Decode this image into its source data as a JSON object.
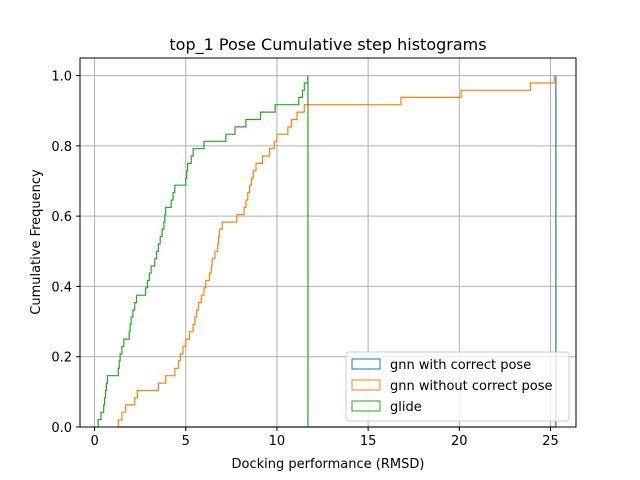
{
  "chart_data": {
    "type": "line",
    "subtype": "cumulative step histogram",
    "title": "top_1 Pose Cumulative step histograms",
    "xlabel": "Docking performance (RMSD)",
    "ylabel": "Cumulative Frequency",
    "xlim": [
      -0.8,
      26.4
    ],
    "ylim": [
      0,
      1.05
    ],
    "xticks": [
      0,
      5,
      10,
      15,
      20,
      25
    ],
    "yticks": [
      0.0,
      0.2,
      0.4,
      0.6,
      0.8,
      1.0
    ],
    "xtick_labels": [
      "0",
      "5",
      "10",
      "15",
      "20",
      "25"
    ],
    "ytick_labels": [
      "0.0",
      "0.2",
      "0.4",
      "0.6",
      "0.8",
      "1.0"
    ],
    "grid": true,
    "legend_position": "lower right",
    "series": [
      {
        "name": "gnn with correct pose",
        "color": "#1f77b4",
        "points": [
          [
            1.3,
            0.0
          ],
          [
            25.3,
            0.0
          ],
          [
            25.3,
            1.0
          ]
        ]
      },
      {
        "name": "gnn without correct pose",
        "color": "#ff7f0e",
        "points": [
          [
            1.3,
            0.0
          ],
          [
            1.3,
            0.02
          ],
          [
            1.5,
            0.02
          ],
          [
            1.5,
            0.042
          ],
          [
            1.7,
            0.042
          ],
          [
            1.7,
            0.063
          ],
          [
            2.2,
            0.063
          ],
          [
            2.2,
            0.083
          ],
          [
            2.35,
            0.083
          ],
          [
            2.35,
            0.104
          ],
          [
            3.5,
            0.104
          ],
          [
            3.5,
            0.125
          ],
          [
            3.9,
            0.125
          ],
          [
            3.9,
            0.146
          ],
          [
            4.4,
            0.146
          ],
          [
            4.4,
            0.167
          ],
          [
            4.6,
            0.167
          ],
          [
            4.6,
            0.188
          ],
          [
            4.7,
            0.188
          ],
          [
            4.7,
            0.208
          ],
          [
            4.85,
            0.208
          ],
          [
            4.85,
            0.229
          ],
          [
            5.0,
            0.229
          ],
          [
            5.0,
            0.25
          ],
          [
            5.2,
            0.25
          ],
          [
            5.2,
            0.271
          ],
          [
            5.4,
            0.271
          ],
          [
            5.4,
            0.292
          ],
          [
            5.5,
            0.292
          ],
          [
            5.5,
            0.313
          ],
          [
            5.6,
            0.313
          ],
          [
            5.6,
            0.333
          ],
          [
            5.7,
            0.333
          ],
          [
            5.7,
            0.354
          ],
          [
            5.85,
            0.354
          ],
          [
            5.85,
            0.375
          ],
          [
            6.0,
            0.375
          ],
          [
            6.0,
            0.396
          ],
          [
            6.1,
            0.396
          ],
          [
            6.1,
            0.417
          ],
          [
            6.3,
            0.417
          ],
          [
            6.3,
            0.438
          ],
          [
            6.4,
            0.438
          ],
          [
            6.4,
            0.458
          ],
          [
            6.45,
            0.458
          ],
          [
            6.45,
            0.479
          ],
          [
            6.6,
            0.479
          ],
          [
            6.6,
            0.5
          ],
          [
            6.75,
            0.5
          ],
          [
            6.75,
            0.521
          ],
          [
            6.8,
            0.521
          ],
          [
            6.8,
            0.542
          ],
          [
            6.85,
            0.542
          ],
          [
            6.85,
            0.563
          ],
          [
            7.0,
            0.563
          ],
          [
            7.0,
            0.583
          ],
          [
            7.8,
            0.583
          ],
          [
            7.8,
            0.604
          ],
          [
            8.2,
            0.604
          ],
          [
            8.2,
            0.625
          ],
          [
            8.3,
            0.625
          ],
          [
            8.3,
            0.646
          ],
          [
            8.4,
            0.646
          ],
          [
            8.4,
            0.667
          ],
          [
            8.5,
            0.667
          ],
          [
            8.5,
            0.688
          ],
          [
            8.6,
            0.688
          ],
          [
            8.6,
            0.708
          ],
          [
            8.7,
            0.708
          ],
          [
            8.7,
            0.729
          ],
          [
            8.85,
            0.729
          ],
          [
            8.85,
            0.75
          ],
          [
            9.2,
            0.75
          ],
          [
            9.2,
            0.771
          ],
          [
            9.6,
            0.771
          ],
          [
            9.6,
            0.792
          ],
          [
            9.85,
            0.792
          ],
          [
            9.85,
            0.813
          ],
          [
            10.0,
            0.813
          ],
          [
            10.0,
            0.833
          ],
          [
            10.6,
            0.833
          ],
          [
            10.6,
            0.854
          ],
          [
            10.8,
            0.854
          ],
          [
            10.8,
            0.875
          ],
          [
            11.1,
            0.875
          ],
          [
            11.1,
            0.896
          ],
          [
            11.5,
            0.896
          ],
          [
            11.5,
            0.917
          ],
          [
            16.8,
            0.917
          ],
          [
            16.8,
            0.938
          ],
          [
            20.1,
            0.938
          ],
          [
            20.1,
            0.958
          ],
          [
            23.9,
            0.958
          ],
          [
            23.9,
            0.979
          ],
          [
            25.2,
            0.979
          ],
          [
            25.2,
            1.0
          ]
        ]
      },
      {
        "name": "glide",
        "color": "#2ca02c",
        "points": [
          [
            0.2,
            0.0
          ],
          [
            0.2,
            0.021
          ],
          [
            0.35,
            0.021
          ],
          [
            0.35,
            0.042
          ],
          [
            0.5,
            0.042
          ],
          [
            0.5,
            0.063
          ],
          [
            0.55,
            0.063
          ],
          [
            0.55,
            0.083
          ],
          [
            0.6,
            0.083
          ],
          [
            0.6,
            0.104
          ],
          [
            0.65,
            0.104
          ],
          [
            0.65,
            0.125
          ],
          [
            0.7,
            0.125
          ],
          [
            0.7,
            0.146
          ],
          [
            1.3,
            0.146
          ],
          [
            1.3,
            0.167
          ],
          [
            1.35,
            0.167
          ],
          [
            1.35,
            0.188
          ],
          [
            1.4,
            0.188
          ],
          [
            1.4,
            0.208
          ],
          [
            1.5,
            0.208
          ],
          [
            1.5,
            0.229
          ],
          [
            1.6,
            0.229
          ],
          [
            1.6,
            0.25
          ],
          [
            1.9,
            0.25
          ],
          [
            1.9,
            0.271
          ],
          [
            1.95,
            0.271
          ],
          [
            1.95,
            0.292
          ],
          [
            2.0,
            0.292
          ],
          [
            2.0,
            0.313
          ],
          [
            2.1,
            0.313
          ],
          [
            2.1,
            0.333
          ],
          [
            2.2,
            0.333
          ],
          [
            2.2,
            0.354
          ],
          [
            2.3,
            0.354
          ],
          [
            2.3,
            0.375
          ],
          [
            2.8,
            0.375
          ],
          [
            2.8,
            0.396
          ],
          [
            2.9,
            0.396
          ],
          [
            2.9,
            0.417
          ],
          [
            3.0,
            0.417
          ],
          [
            3.0,
            0.438
          ],
          [
            3.1,
            0.438
          ],
          [
            3.1,
            0.458
          ],
          [
            3.3,
            0.458
          ],
          [
            3.3,
            0.479
          ],
          [
            3.4,
            0.479
          ],
          [
            3.4,
            0.5
          ],
          [
            3.5,
            0.5
          ],
          [
            3.5,
            0.521
          ],
          [
            3.6,
            0.521
          ],
          [
            3.6,
            0.542
          ],
          [
            3.7,
            0.542
          ],
          [
            3.7,
            0.563
          ],
          [
            3.8,
            0.563
          ],
          [
            3.8,
            0.583
          ],
          [
            3.85,
            0.583
          ],
          [
            3.85,
            0.604
          ],
          [
            3.9,
            0.604
          ],
          [
            3.9,
            0.625
          ],
          [
            4.2,
            0.625
          ],
          [
            4.2,
            0.646
          ],
          [
            4.3,
            0.646
          ],
          [
            4.3,
            0.667
          ],
          [
            4.4,
            0.667
          ],
          [
            4.4,
            0.688
          ],
          [
            5.0,
            0.688
          ],
          [
            5.0,
            0.708
          ],
          [
            5.05,
            0.708
          ],
          [
            5.05,
            0.729
          ],
          [
            5.1,
            0.729
          ],
          [
            5.1,
            0.75
          ],
          [
            5.3,
            0.75
          ],
          [
            5.3,
            0.771
          ],
          [
            5.4,
            0.771
          ],
          [
            5.4,
            0.792
          ],
          [
            6.0,
            0.792
          ],
          [
            6.0,
            0.813
          ],
          [
            7.2,
            0.813
          ],
          [
            7.2,
            0.833
          ],
          [
            7.7,
            0.833
          ],
          [
            7.7,
            0.854
          ],
          [
            8.3,
            0.854
          ],
          [
            8.3,
            0.875
          ],
          [
            9.1,
            0.875
          ],
          [
            9.1,
            0.896
          ],
          [
            9.9,
            0.896
          ],
          [
            9.9,
            0.917
          ],
          [
            11.2,
            0.917
          ],
          [
            11.2,
            0.938
          ],
          [
            11.4,
            0.938
          ],
          [
            11.4,
            0.958
          ],
          [
            11.5,
            0.958
          ],
          [
            11.5,
            0.979
          ],
          [
            11.7,
            0.979
          ],
          [
            11.7,
            1.0
          ]
        ],
        "drop_to_zero_at": 11.7
      }
    ]
  }
}
